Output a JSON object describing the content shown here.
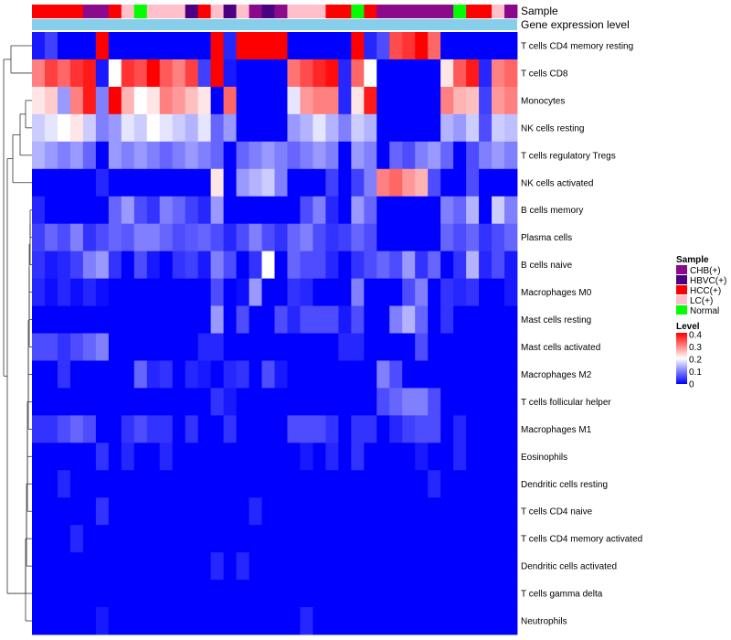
{
  "chart_data": {
    "type": "heatmap",
    "title": "",
    "annotation_labels": {
      "sample": "Sample",
      "expression": "Gene expression level"
    },
    "sample_groups": {
      "CHB(+)": "#8B0A8B",
      "HBVC(+)": "#4B0082",
      "HCC(+)": "#FF0000",
      "LC(+)": "#FFC0CB",
      "Normal": "#00FF00"
    },
    "columns": [
      "HCC(+)",
      "HCC(+)",
      "HCC(+)",
      "HCC(+)",
      "CHB(+)",
      "CHB(+)",
      "HCC(+)",
      "LC(+)",
      "Normal",
      "LC(+)",
      "LC(+)",
      "LC(+)",
      "HBVC(+)",
      "HCC(+)",
      "LC(+)",
      "HBVC(+)",
      "LC(+)",
      "CHB(+)",
      "HBVC(+)",
      "CHB(+)",
      "LC(+)",
      "LC(+)",
      "LC(+)",
      "HCC(+)",
      "HCC(+)",
      "Normal",
      "HCC(+)",
      "CHB(+)",
      "CHB(+)",
      "CHB(+)",
      "CHB(+)",
      "CHB(+)",
      "CHB(+)",
      "Normal",
      "HCC(+)",
      "HCC(+)",
      "LC(+)",
      "CHB(+)"
    ],
    "expression_bar_color": "#87CEEB",
    "rows": [
      "T cells CD4 memory resting",
      "T cells CD8",
      "Monocytes",
      "NK cells resting",
      "T cells regulatory  Tregs",
      "NK cells activated",
      "B cells memory",
      "Plasma cells",
      "B cells naive",
      "Macrophages M0",
      "Mast cells resting",
      "Mast cells activated",
      "Macrophages M2",
      "T cells follicular helper",
      "Macrophages M1",
      "Eosinophils",
      "Dendritic cells resting",
      "T cells CD4 naive",
      "T cells CD4 memory activated",
      "Dendritic cells activated",
      "T cells gamma delta",
      "Neutrophils"
    ],
    "values": [
      [
        0.02,
        0.05,
        0.0,
        0.0,
        0.0,
        0.42,
        0.0,
        0.0,
        0.0,
        0.0,
        0.0,
        0.0,
        0.0,
        0.0,
        0.42,
        0.03,
        0.42,
        0.42,
        0.42,
        0.42,
        0.0,
        0.0,
        0.0,
        0.0,
        0.0,
        0.42,
        0.03,
        0.06,
        0.34,
        0.36,
        0.42,
        0.32,
        0.0,
        0.0,
        0.0,
        0.0,
        0.0,
        0.0
      ],
      [
        0.3,
        0.35,
        0.32,
        0.36,
        0.38,
        0.02,
        0.2,
        0.36,
        0.34,
        0.42,
        0.33,
        0.3,
        0.35,
        0.05,
        0.4,
        0.02,
        0.0,
        0.0,
        0.0,
        0.0,
        0.31,
        0.34,
        0.37,
        0.39,
        0.03,
        0.32,
        0.2,
        0.0,
        0.0,
        0.0,
        0.0,
        0.0,
        0.22,
        0.33,
        0.38,
        0.03,
        0.3,
        0.32
      ],
      [
        0.22,
        0.24,
        0.12,
        0.3,
        0.38,
        0.1,
        0.42,
        0.26,
        0.2,
        0.22,
        0.3,
        0.28,
        0.25,
        0.22,
        0.0,
        0.32,
        0.0,
        0.0,
        0.0,
        0.0,
        0.18,
        0.28,
        0.3,
        0.3,
        0.03,
        0.22,
        0.38,
        0.0,
        0.0,
        0.0,
        0.0,
        0.0,
        0.3,
        0.26,
        0.25,
        0.05,
        0.28,
        0.3
      ],
      [
        0.16,
        0.18,
        0.2,
        0.22,
        0.16,
        0.1,
        0.12,
        0.18,
        0.16,
        0.2,
        0.18,
        0.16,
        0.14,
        0.18,
        0.08,
        0.12,
        0.0,
        0.0,
        0.0,
        0.0,
        0.12,
        0.14,
        0.18,
        0.14,
        0.1,
        0.16,
        0.14,
        0.0,
        0.0,
        0.0,
        0.0,
        0.0,
        0.14,
        0.12,
        0.16,
        0.06,
        0.16,
        0.15
      ],
      [
        0.14,
        0.12,
        0.1,
        0.12,
        0.08,
        0.0,
        0.12,
        0.1,
        0.12,
        0.1,
        0.08,
        0.1,
        0.12,
        0.1,
        0.08,
        0.0,
        0.08,
        0.1,
        0.12,
        0.1,
        0.08,
        0.1,
        0.12,
        0.1,
        0.0,
        0.12,
        0.1,
        0.0,
        0.08,
        0.06,
        0.1,
        0.12,
        0.08,
        0.0,
        0.06,
        0.1,
        0.12,
        0.1
      ],
      [
        0.0,
        0.0,
        0.0,
        0.0,
        0.0,
        0.03,
        0.0,
        0.0,
        0.0,
        0.0,
        0.0,
        0.0,
        0.0,
        0.0,
        0.22,
        0.0,
        0.12,
        0.14,
        0.16,
        0.1,
        0.0,
        0.0,
        0.0,
        0.05,
        0.0,
        0.05,
        0.1,
        0.3,
        0.32,
        0.28,
        0.26,
        0.06,
        0.0,
        0.0,
        0.06,
        0.0,
        0.0,
        0.0
      ],
      [
        0.03,
        0.0,
        0.0,
        0.0,
        0.0,
        0.0,
        0.08,
        0.12,
        0.06,
        0.04,
        0.1,
        0.08,
        0.05,
        0.03,
        0.12,
        0.0,
        0.0,
        0.0,
        0.0,
        0.0,
        0.0,
        0.06,
        0.1,
        0.03,
        0.0,
        0.12,
        0.08,
        0.0,
        0.0,
        0.0,
        0.0,
        0.0,
        0.1,
        0.08,
        0.14,
        0.0,
        0.16,
        0.1
      ],
      [
        0.05,
        0.08,
        0.06,
        0.1,
        0.04,
        0.06,
        0.08,
        0.07,
        0.1,
        0.1,
        0.08,
        0.06,
        0.07,
        0.08,
        0.06,
        0.03,
        0.06,
        0.1,
        0.06,
        0.04,
        0.08,
        0.1,
        0.06,
        0.04,
        0.05,
        0.08,
        0.06,
        0.0,
        0.0,
        0.0,
        0.0,
        0.0,
        0.08,
        0.06,
        0.08,
        0.04,
        0.06,
        0.08
      ],
      [
        0.04,
        0.02,
        0.03,
        0.05,
        0.1,
        0.12,
        0.04,
        0.0,
        0.06,
        0.02,
        0.0,
        0.04,
        0.05,
        0.02,
        0.1,
        0.06,
        0.0,
        0.04,
        0.2,
        0.0,
        0.08,
        0.06,
        0.06,
        0.03,
        0.0,
        0.04,
        0.06,
        0.08,
        0.06,
        0.12,
        0.04,
        0.08,
        0.0,
        0.04,
        0.14,
        0.03,
        0.06,
        0.02
      ],
      [
        0.03,
        0.01,
        0.03,
        0.01,
        0.03,
        0.01,
        0.0,
        0.0,
        0.0,
        0.0,
        0.0,
        0.0,
        0.0,
        0.0,
        0.06,
        0.0,
        0.01,
        0.12,
        0.0,
        0.0,
        0.04,
        0.03,
        0.0,
        0.0,
        0.0,
        0.1,
        0.0,
        0.0,
        0.0,
        0.06,
        0.1,
        0.0,
        0.04,
        0.03,
        0.04,
        0.0,
        0.0,
        0.02
      ],
      [
        0.0,
        0.0,
        0.0,
        0.0,
        0.0,
        0.0,
        0.0,
        0.0,
        0.0,
        0.0,
        0.0,
        0.0,
        0.0,
        0.0,
        0.12,
        0.0,
        0.06,
        0.0,
        0.0,
        0.06,
        0.03,
        0.06,
        0.06,
        0.06,
        0.02,
        0.06,
        0.0,
        0.0,
        0.1,
        0.14,
        0.08,
        0.0,
        0.04,
        0.0,
        0.0,
        0.0,
        0.0,
        0.0
      ],
      [
        0.06,
        0.06,
        0.04,
        0.06,
        0.08,
        0.1,
        0.0,
        0.0,
        0.0,
        0.0,
        0.0,
        0.0,
        0.0,
        0.03,
        0.03,
        0.0,
        0.0,
        0.0,
        0.0,
        0.0,
        0.0,
        0.0,
        0.0,
        0.0,
        0.03,
        0.03,
        0.0,
        0.0,
        0.0,
        0.0,
        0.06,
        0.0,
        0.0,
        0.0,
        0.0,
        0.0,
        0.0,
        0.0
      ],
      [
        0.0,
        0.0,
        0.04,
        0.0,
        0.0,
        0.0,
        0.0,
        0.0,
        0.08,
        0.03,
        0.04,
        0.0,
        0.03,
        0.02,
        0.0,
        0.03,
        0.04,
        0.0,
        0.06,
        0.02,
        0.0,
        0.0,
        0.0,
        0.0,
        0.0,
        0.0,
        0.0,
        0.1,
        0.06,
        0.0,
        0.0,
        0.0,
        0.0,
        0.0,
        0.0,
        0.0,
        0.0,
        0.0
      ],
      [
        0.0,
        0.0,
        0.0,
        0.0,
        0.0,
        0.0,
        0.0,
        0.0,
        0.0,
        0.0,
        0.0,
        0.0,
        0.0,
        0.0,
        0.04,
        0.02,
        0.0,
        0.0,
        0.0,
        0.0,
        0.0,
        0.0,
        0.0,
        0.0,
        0.0,
        0.0,
        0.0,
        0.06,
        0.08,
        0.1,
        0.1,
        0.06,
        0.0,
        0.0,
        0.0,
        0.0,
        0.0,
        0.0
      ],
      [
        0.04,
        0.04,
        0.06,
        0.08,
        0.06,
        0.0,
        0.0,
        0.04,
        0.06,
        0.04,
        0.04,
        0.0,
        0.04,
        0.0,
        0.0,
        0.04,
        0.0,
        0.0,
        0.0,
        0.0,
        0.06,
        0.06,
        0.06,
        0.04,
        0.0,
        0.04,
        0.04,
        0.0,
        0.03,
        0.05,
        0.06,
        0.06,
        0.0,
        0.03,
        0.0,
        0.0,
        0.0,
        0.0
      ],
      [
        0.0,
        0.0,
        0.0,
        0.0,
        0.0,
        0.04,
        0.0,
        0.03,
        0.0,
        0.0,
        0.03,
        0.0,
        0.0,
        0.0,
        0.0,
        0.0,
        0.0,
        0.0,
        0.0,
        0.0,
        0.0,
        0.02,
        0.0,
        0.03,
        0.0,
        0.04,
        0.0,
        0.0,
        0.0,
        0.0,
        0.02,
        0.0,
        0.0,
        0.03,
        0.0,
        0.0,
        0.0,
        0.0
      ],
      [
        0.0,
        0.0,
        0.03,
        0.0,
        0.0,
        0.0,
        0.0,
        0.0,
        0.0,
        0.0,
        0.0,
        0.0,
        0.0,
        0.0,
        0.0,
        0.0,
        0.0,
        0.0,
        0.0,
        0.0,
        0.0,
        0.0,
        0.0,
        0.0,
        0.0,
        0.0,
        0.0,
        0.0,
        0.0,
        0.0,
        0.0,
        0.03,
        0.0,
        0.0,
        0.0,
        0.0,
        0.0,
        0.0
      ],
      [
        0.0,
        0.0,
        0.0,
        0.0,
        0.0,
        0.04,
        0.0,
        0.0,
        0.0,
        0.0,
        0.0,
        0.0,
        0.0,
        0.0,
        0.0,
        0.0,
        0.0,
        0.03,
        0.0,
        0.0,
        0.0,
        0.0,
        0.0,
        0.0,
        0.0,
        0.0,
        0.0,
        0.0,
        0.0,
        0.0,
        0.0,
        0.0,
        0.0,
        0.0,
        0.0,
        0.0,
        0.0,
        0.0
      ],
      [
        0.0,
        0.0,
        0.0,
        0.03,
        0.0,
        0.0,
        0.0,
        0.0,
        0.0,
        0.0,
        0.0,
        0.0,
        0.0,
        0.0,
        0.0,
        0.0,
        0.0,
        0.0,
        0.0,
        0.0,
        0.0,
        0.0,
        0.0,
        0.0,
        0.0,
        0.0,
        0.0,
        0.0,
        0.0,
        0.0,
        0.0,
        0.0,
        0.0,
        0.0,
        0.0,
        0.0,
        0.0,
        0.0
      ],
      [
        0.0,
        0.0,
        0.0,
        0.0,
        0.0,
        0.0,
        0.0,
        0.0,
        0.0,
        0.0,
        0.0,
        0.0,
        0.0,
        0.0,
        0.03,
        0.0,
        0.03,
        0.0,
        0.0,
        0.0,
        0.0,
        0.0,
        0.0,
        0.0,
        0.0,
        0.0,
        0.0,
        0.0,
        0.0,
        0.0,
        0.0,
        0.0,
        0.0,
        0.0,
        0.0,
        0.0,
        0.0,
        0.0
      ],
      [
        0.0,
        0.0,
        0.0,
        0.0,
        0.0,
        0.0,
        0.0,
        0.0,
        0.0,
        0.0,
        0.0,
        0.0,
        0.0,
        0.0,
        0.0,
        0.0,
        0.0,
        0.0,
        0.0,
        0.0,
        0.0,
        0.0,
        0.0,
        0.0,
        0.0,
        0.0,
        0.0,
        0.0,
        0.0,
        0.0,
        0.0,
        0.0,
        0.0,
        0.0,
        0.0,
        0.0,
        0.0,
        0.0
      ],
      [
        0.0,
        0.0,
        0.0,
        0.0,
        0.0,
        0.02,
        0.0,
        0.0,
        0.0,
        0.0,
        0.0,
        0.0,
        0.0,
        0.0,
        0.0,
        0.0,
        0.0,
        0.0,
        0.0,
        0.0,
        0.0,
        0.03,
        0.0,
        0.0,
        0.0,
        0.0,
        0.0,
        0.0,
        0.0,
        0.0,
        0.0,
        0.0,
        0.0,
        0.0,
        0.0,
        0.0,
        0.0,
        0.0
      ]
    ],
    "color_scale": {
      "min": 0,
      "mid": 0.2,
      "max": 0.4,
      "low": "#0000FF",
      "midcolor": "#FFFFFF",
      "high": "#FF0000"
    },
    "legend": {
      "sample_title": "Sample",
      "sample_entries": [
        "CHB(+)",
        "HBVC(+)",
        "HCC(+)",
        "LC(+)",
        "Normal"
      ],
      "level_title": "Level",
      "level_ticks": [
        "0.4",
        "0.3",
        "0.2",
        "0.1",
        "0"
      ]
    }
  }
}
